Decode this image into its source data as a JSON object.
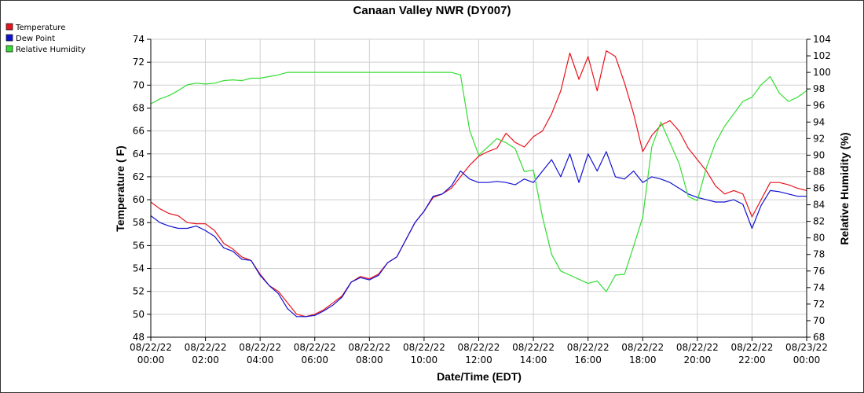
{
  "chart_data": {
    "type": "line",
    "title": "Canaan Valley NWR (DY007)",
    "xlabel": "Date/Time (EDT)",
    "ylabel": "Temperature ( F)",
    "y2label": "Relative Humidity (%)",
    "ylim": [
      48,
      74
    ],
    "y_ticks": [
      48,
      50,
      52,
      54,
      56,
      58,
      60,
      62,
      64,
      66,
      68,
      70,
      72,
      74
    ],
    "y2lim": [
      68,
      104
    ],
    "y2_ticks": [
      68,
      70,
      72,
      74,
      76,
      78,
      80,
      82,
      84,
      86,
      88,
      90,
      92,
      94,
      96,
      98,
      100,
      102,
      104
    ],
    "xlim": [
      "2022-08-22 00:00",
      "2022-08-23 00:00"
    ],
    "x_ticks": [
      {
        "date": "08/22/22",
        "time": "00:00"
      },
      {
        "date": "08/22/22",
        "time": "02:00"
      },
      {
        "date": "08/22/22",
        "time": "04:00"
      },
      {
        "date": "08/22/22",
        "time": "06:00"
      },
      {
        "date": "08/22/22",
        "time": "08:00"
      },
      {
        "date": "08/22/22",
        "time": "10:00"
      },
      {
        "date": "08/22/22",
        "time": "12:00"
      },
      {
        "date": "08/22/22",
        "time": "14:00"
      },
      {
        "date": "08/22/22",
        "time": "16:00"
      },
      {
        "date": "08/22/22",
        "time": "18:00"
      },
      {
        "date": "08/22/22",
        "time": "20:00"
      },
      {
        "date": "08/22/22",
        "time": "22:00"
      },
      {
        "date": "08/23/22",
        "time": "00:00"
      }
    ],
    "grid": true,
    "legend_position": "top-left",
    "series": [
      {
        "name": "Temperature",
        "color": "#e8121c",
        "axis": "left",
        "values": [
          [
            "00:00",
            59.8
          ],
          [
            "00:20",
            59.2
          ],
          [
            "00:40",
            58.8
          ],
          [
            "01:00",
            58.6
          ],
          [
            "01:20",
            58.0
          ],
          [
            "01:40",
            57.9
          ],
          [
            "02:00",
            57.9
          ],
          [
            "02:20",
            57.3
          ],
          [
            "02:40",
            56.2
          ],
          [
            "03:00",
            55.7
          ],
          [
            "03:20",
            55.0
          ],
          [
            "03:40",
            54.7
          ],
          [
            "04:00",
            53.5
          ],
          [
            "04:20",
            52.5
          ],
          [
            "04:40",
            52.0
          ],
          [
            "05:00",
            51.0
          ],
          [
            "05:20",
            50.0
          ],
          [
            "05:40",
            49.8
          ],
          [
            "06:00",
            50.0
          ],
          [
            "06:20",
            50.4
          ],
          [
            "06:40",
            51.0
          ],
          [
            "07:00",
            51.6
          ],
          [
            "07:20",
            52.8
          ],
          [
            "07:40",
            53.3
          ],
          [
            "08:00",
            53.1
          ],
          [
            "08:20",
            53.5
          ],
          [
            "08:40",
            54.5
          ],
          [
            "09:00",
            55.0
          ],
          [
            "09:20",
            56.5
          ],
          [
            "09:40",
            58.0
          ],
          [
            "10:00",
            59.0
          ],
          [
            "10:20",
            60.2
          ],
          [
            "10:40",
            60.5
          ],
          [
            "11:00",
            61.0
          ],
          [
            "11:20",
            62.0
          ],
          [
            "11:40",
            63.0
          ],
          [
            "12:00",
            63.8
          ],
          [
            "12:20",
            64.2
          ],
          [
            "12:40",
            64.5
          ],
          [
            "13:00",
            65.8
          ],
          [
            "13:20",
            65.0
          ],
          [
            "13:40",
            64.6
          ],
          [
            "14:00",
            65.5
          ],
          [
            "14:20",
            66.0
          ],
          [
            "14:40",
            67.5
          ],
          [
            "15:00",
            69.5
          ],
          [
            "15:20",
            72.8
          ],
          [
            "15:40",
            70.5
          ],
          [
            "16:00",
            72.5
          ],
          [
            "16:20",
            69.5
          ],
          [
            "16:40",
            73.0
          ],
          [
            "17:00",
            72.5
          ],
          [
            "17:20",
            70.2
          ],
          [
            "17:40",
            67.5
          ],
          [
            "18:00",
            64.2
          ],
          [
            "18:20",
            65.6
          ],
          [
            "18:40",
            66.5
          ],
          [
            "19:00",
            66.9
          ],
          [
            "19:20",
            66.0
          ],
          [
            "19:40",
            64.5
          ],
          [
            "20:00",
            63.5
          ],
          [
            "20:20",
            62.5
          ],
          [
            "20:40",
            61.2
          ],
          [
            "21:00",
            60.5
          ],
          [
            "21:20",
            60.8
          ],
          [
            "21:40",
            60.5
          ],
          [
            "22:00",
            58.5
          ],
          [
            "22:20",
            60.0
          ],
          [
            "22:40",
            61.5
          ],
          [
            "23:00",
            61.5
          ],
          [
            "23:20",
            61.3
          ],
          [
            "23:40",
            61.0
          ],
          [
            "24:00",
            60.8
          ]
        ]
      },
      {
        "name": "Dew Point",
        "color": "#1010d0",
        "axis": "left",
        "values": [
          [
            "00:00",
            58.6
          ],
          [
            "00:20",
            58.0
          ],
          [
            "00:40",
            57.7
          ],
          [
            "01:00",
            57.5
          ],
          [
            "01:20",
            57.5
          ],
          [
            "01:40",
            57.7
          ],
          [
            "02:00",
            57.3
          ],
          [
            "02:20",
            56.8
          ],
          [
            "02:40",
            55.8
          ],
          [
            "03:00",
            55.5
          ],
          [
            "03:20",
            54.8
          ],
          [
            "03:40",
            54.7
          ],
          [
            "04:00",
            53.4
          ],
          [
            "04:20",
            52.5
          ],
          [
            "04:40",
            51.8
          ],
          [
            "05:00",
            50.5
          ],
          [
            "05:20",
            49.8
          ],
          [
            "05:40",
            49.8
          ],
          [
            "06:00",
            49.9
          ],
          [
            "06:20",
            50.3
          ],
          [
            "06:40",
            50.8
          ],
          [
            "07:00",
            51.5
          ],
          [
            "07:20",
            52.8
          ],
          [
            "07:40",
            53.2
          ],
          [
            "08:00",
            53.0
          ],
          [
            "08:20",
            53.4
          ],
          [
            "08:40",
            54.5
          ],
          [
            "09:00",
            55.0
          ],
          [
            "09:20",
            56.5
          ],
          [
            "09:40",
            58.0
          ],
          [
            "10:00",
            59.0
          ],
          [
            "10:20",
            60.3
          ],
          [
            "10:40",
            60.5
          ],
          [
            "11:00",
            61.2
          ],
          [
            "11:20",
            62.5
          ],
          [
            "11:40",
            61.8
          ],
          [
            "12:00",
            61.5
          ],
          [
            "12:20",
            61.5
          ],
          [
            "12:40",
            61.6
          ],
          [
            "13:00",
            61.5
          ],
          [
            "13:20",
            61.3
          ],
          [
            "13:40",
            61.8
          ],
          [
            "14:00",
            61.5
          ],
          [
            "14:20",
            62.5
          ],
          [
            "14:40",
            63.5
          ],
          [
            "15:00",
            62.0
          ],
          [
            "15:20",
            64.0
          ],
          [
            "15:40",
            61.5
          ],
          [
            "16:00",
            64.0
          ],
          [
            "16:20",
            62.5
          ],
          [
            "16:40",
            64.2
          ],
          [
            "17:00",
            62.0
          ],
          [
            "17:20",
            61.8
          ],
          [
            "17:40",
            62.5
          ],
          [
            "18:00",
            61.5
          ],
          [
            "18:20",
            62.0
          ],
          [
            "18:40",
            61.8
          ],
          [
            "19:00",
            61.5
          ],
          [
            "19:20",
            61.0
          ],
          [
            "19:40",
            60.5
          ],
          [
            "20:00",
            60.2
          ],
          [
            "20:20",
            60.0
          ],
          [
            "20:40",
            59.8
          ],
          [
            "21:00",
            59.8
          ],
          [
            "21:20",
            60.0
          ],
          [
            "21:40",
            59.6
          ],
          [
            "22:00",
            57.5
          ],
          [
            "22:20",
            59.5
          ],
          [
            "22:40",
            60.8
          ],
          [
            "23:00",
            60.7
          ],
          [
            "23:20",
            60.5
          ],
          [
            "23:40",
            60.3
          ],
          [
            "24:00",
            60.3
          ]
        ]
      },
      {
        "name": "Relative Humidity",
        "color": "#33dd33",
        "axis": "right",
        "values": [
          [
            "00:00",
            96.2
          ],
          [
            "00:20",
            96.8
          ],
          [
            "00:40",
            97.2
          ],
          [
            "01:00",
            97.8
          ],
          [
            "01:20",
            98.5
          ],
          [
            "01:40",
            98.7
          ],
          [
            "02:00",
            98.6
          ],
          [
            "02:20",
            98.7
          ],
          [
            "02:40",
            99.0
          ],
          [
            "03:00",
            99.1
          ],
          [
            "03:20",
            99.0
          ],
          [
            "03:40",
            99.3
          ],
          [
            "04:00",
            99.3
          ],
          [
            "04:20",
            99.5
          ],
          [
            "04:40",
            99.7
          ],
          [
            "05:00",
            100.0
          ],
          [
            "05:20",
            100.0
          ],
          [
            "05:40",
            100.0
          ],
          [
            "06:00",
            100.0
          ],
          [
            "06:20",
            100.0
          ],
          [
            "06:40",
            100.0
          ],
          [
            "07:00",
            100.0
          ],
          [
            "07:20",
            100.0
          ],
          [
            "07:40",
            100.0
          ],
          [
            "08:00",
            100.0
          ],
          [
            "08:20",
            100.0
          ],
          [
            "08:40",
            100.0
          ],
          [
            "09:00",
            100.0
          ],
          [
            "09:20",
            100.0
          ],
          [
            "09:40",
            100.0
          ],
          [
            "10:00",
            100.0
          ],
          [
            "10:20",
            100.0
          ],
          [
            "10:40",
            100.0
          ],
          [
            "11:00",
            100.0
          ],
          [
            "11:20",
            99.7
          ],
          [
            "11:40",
            93.0
          ],
          [
            "12:00",
            90.0
          ],
          [
            "12:20",
            91.0
          ],
          [
            "12:40",
            92.0
          ],
          [
            "13:00",
            91.5
          ],
          [
            "13:20",
            90.8
          ],
          [
            "13:40",
            88.0
          ],
          [
            "14:00",
            88.2
          ],
          [
            "14:20",
            82.5
          ],
          [
            "14:40",
            78.0
          ],
          [
            "15:00",
            76.0
          ],
          [
            "15:20",
            75.5
          ],
          [
            "15:40",
            75.0
          ],
          [
            "16:00",
            74.5
          ],
          [
            "16:20",
            74.8
          ],
          [
            "16:40",
            73.5
          ],
          [
            "17:00",
            75.5
          ],
          [
            "17:20",
            75.6
          ],
          [
            "17:40",
            79.0
          ],
          [
            "18:00",
            82.5
          ],
          [
            "18:20",
            91.0
          ],
          [
            "18:40",
            94.0
          ],
          [
            "19:00",
            91.5
          ],
          [
            "19:20",
            89.0
          ],
          [
            "19:40",
            85.0
          ],
          [
            "20:00",
            84.5
          ],
          [
            "20:20",
            88.5
          ],
          [
            "20:40",
            91.5
          ],
          [
            "21:00",
            93.5
          ],
          [
            "21:20",
            95.0
          ],
          [
            "21:40",
            96.5
          ],
          [
            "22:00",
            97.0
          ],
          [
            "22:20",
            98.5
          ],
          [
            "22:40",
            99.5
          ],
          [
            "23:00",
            97.5
          ],
          [
            "23:20",
            96.5
          ],
          [
            "23:40",
            97.0
          ],
          [
            "24:00",
            97.8
          ]
        ]
      }
    ]
  }
}
